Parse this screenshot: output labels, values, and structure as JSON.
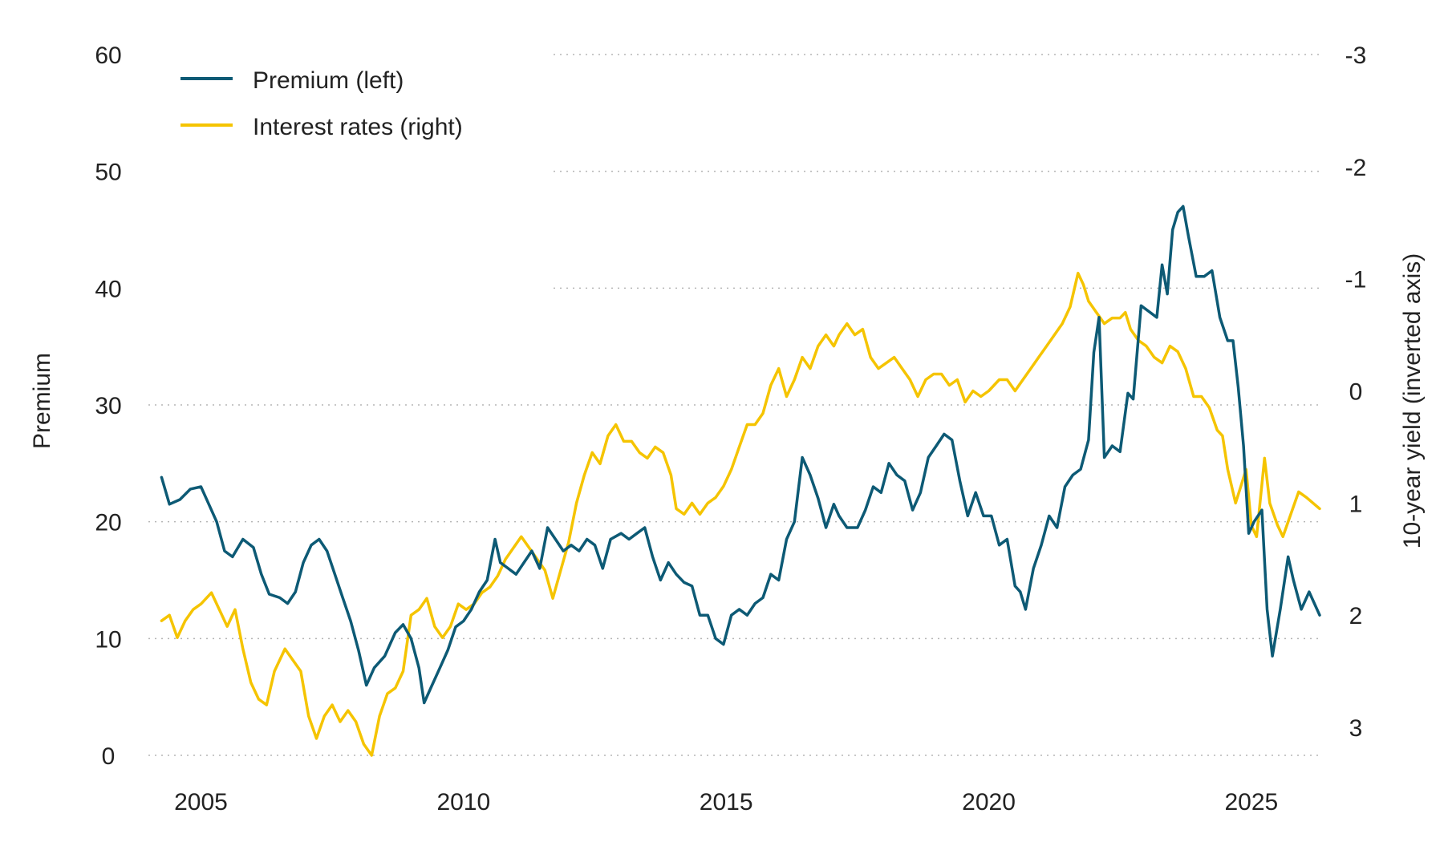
{
  "chart_data": {
    "type": "line",
    "title": "",
    "ylabel": "Premium",
    "y2label": "10-year yield (inverted axis)",
    "ylim": [
      0,
      60
    ],
    "y2lim": [
      3.25,
      -3.0
    ],
    "y2_inverted": true,
    "xlim": [
      2004.0,
      2026.3
    ],
    "x_ticks": [
      2005,
      2010,
      2015,
      2020,
      2025
    ],
    "y_ticks": [
      0,
      10,
      20,
      30,
      40,
      50,
      60
    ],
    "y2_ticks": [
      -3,
      -2,
      -1,
      0,
      1,
      2,
      3
    ],
    "grid": "horizontal-dotted",
    "legend_position": "top-left",
    "colors": {
      "premium": "#0d5a75",
      "rates": "#f5c400"
    },
    "series": [
      {
        "name": "Premium (left)",
        "axis": "left",
        "points": [
          [
            2004.25,
            23.8
          ],
          [
            2004.4,
            21.5
          ],
          [
            2004.6,
            21.9
          ],
          [
            2004.8,
            22.8
          ],
          [
            2005.0,
            23.0
          ],
          [
            2005.15,
            21.5
          ],
          [
            2005.3,
            20.0
          ],
          [
            2005.45,
            17.5
          ],
          [
            2005.6,
            17.0
          ],
          [
            2005.8,
            18.5
          ],
          [
            2006.0,
            17.8
          ],
          [
            2006.15,
            15.5
          ],
          [
            2006.3,
            13.8
          ],
          [
            2006.5,
            13.5
          ],
          [
            2006.65,
            13.0
          ],
          [
            2006.8,
            14.0
          ],
          [
            2006.95,
            16.5
          ],
          [
            2007.1,
            18.0
          ],
          [
            2007.25,
            18.5
          ],
          [
            2007.4,
            17.5
          ],
          [
            2007.55,
            15.5
          ],
          [
            2007.7,
            13.5
          ],
          [
            2007.85,
            11.5
          ],
          [
            2008.0,
            9.0
          ],
          [
            2008.15,
            6.0
          ],
          [
            2008.3,
            7.5
          ],
          [
            2008.5,
            8.5
          ],
          [
            2008.7,
            10.5
          ],
          [
            2008.85,
            11.2
          ],
          [
            2009.0,
            10.0
          ],
          [
            2009.15,
            7.5
          ],
          [
            2009.25,
            4.5
          ],
          [
            2009.4,
            6.0
          ],
          [
            2009.55,
            7.5
          ],
          [
            2009.7,
            9.0
          ],
          [
            2009.85,
            11.0
          ],
          [
            2010.0,
            11.5
          ],
          [
            2010.15,
            12.5
          ],
          [
            2010.3,
            14.0
          ],
          [
            2010.45,
            15.0
          ],
          [
            2010.6,
            18.5
          ],
          [
            2010.7,
            16.5
          ],
          [
            2010.85,
            16.0
          ],
          [
            2011.0,
            15.5
          ],
          [
            2011.15,
            16.5
          ],
          [
            2011.3,
            17.5
          ],
          [
            2011.45,
            16.0
          ],
          [
            2011.6,
            19.5
          ],
          [
            2011.75,
            18.5
          ],
          [
            2011.9,
            17.5
          ],
          [
            2012.05,
            18.0
          ],
          [
            2012.2,
            17.5
          ],
          [
            2012.35,
            18.5
          ],
          [
            2012.5,
            18.0
          ],
          [
            2012.65,
            16.0
          ],
          [
            2012.8,
            18.5
          ],
          [
            2013.0,
            19.0
          ],
          [
            2013.15,
            18.5
          ],
          [
            2013.3,
            19.0
          ],
          [
            2013.45,
            19.5
          ],
          [
            2013.6,
            17.0
          ],
          [
            2013.75,
            15.0
          ],
          [
            2013.9,
            16.5
          ],
          [
            2014.05,
            15.5
          ],
          [
            2014.2,
            14.8
          ],
          [
            2014.35,
            14.5
          ],
          [
            2014.5,
            12.0
          ],
          [
            2014.65,
            12.0
          ],
          [
            2014.8,
            10.0
          ],
          [
            2014.95,
            9.5
          ],
          [
            2015.1,
            12.0
          ],
          [
            2015.25,
            12.5
          ],
          [
            2015.4,
            12.0
          ],
          [
            2015.55,
            13.0
          ],
          [
            2015.7,
            13.5
          ],
          [
            2015.85,
            15.5
          ],
          [
            2016.0,
            15.0
          ],
          [
            2016.15,
            18.5
          ],
          [
            2016.3,
            20.0
          ],
          [
            2016.45,
            25.5
          ],
          [
            2016.6,
            24.0
          ],
          [
            2016.75,
            22.0
          ],
          [
            2016.9,
            19.5
          ],
          [
            2017.05,
            21.5
          ],
          [
            2017.15,
            20.5
          ],
          [
            2017.3,
            19.5
          ],
          [
            2017.5,
            19.5
          ],
          [
            2017.65,
            21.0
          ],
          [
            2017.8,
            23.0
          ],
          [
            2017.95,
            22.5
          ],
          [
            2018.1,
            25.0
          ],
          [
            2018.25,
            24.0
          ],
          [
            2018.4,
            23.5
          ],
          [
            2018.55,
            21.0
          ],
          [
            2018.7,
            22.5
          ],
          [
            2018.85,
            25.5
          ],
          [
            2019.0,
            26.5
          ],
          [
            2019.15,
            27.5
          ],
          [
            2019.3,
            27.0
          ],
          [
            2019.45,
            23.5
          ],
          [
            2019.6,
            20.5
          ],
          [
            2019.75,
            22.5
          ],
          [
            2019.9,
            20.5
          ],
          [
            2020.05,
            20.5
          ],
          [
            2020.2,
            18.0
          ],
          [
            2020.35,
            18.5
          ],
          [
            2020.5,
            14.5
          ],
          [
            2020.6,
            14.0
          ],
          [
            2020.7,
            12.5
          ],
          [
            2020.85,
            16.0
          ],
          [
            2021.0,
            18.0
          ],
          [
            2021.15,
            20.5
          ],
          [
            2021.3,
            19.5
          ],
          [
            2021.45,
            23.0
          ],
          [
            2021.6,
            24.0
          ],
          [
            2021.75,
            24.5
          ],
          [
            2021.9,
            27.0
          ],
          [
            2022.0,
            34.5
          ],
          [
            2022.1,
            37.5
          ],
          [
            2022.2,
            25.5
          ],
          [
            2022.35,
            26.5
          ],
          [
            2022.5,
            26.0
          ],
          [
            2022.65,
            31.0
          ],
          [
            2022.75,
            30.5
          ],
          [
            2022.9,
            38.5
          ],
          [
            2023.05,
            38.0
          ],
          [
            2023.2,
            37.5
          ],
          [
            2023.3,
            42.0
          ],
          [
            2023.4,
            39.5
          ],
          [
            2023.5,
            45.0
          ],
          [
            2023.6,
            46.5
          ],
          [
            2023.7,
            47.0
          ],
          [
            2023.8,
            44.5
          ],
          [
            2023.95,
            41.0
          ],
          [
            2024.1,
            41.0
          ],
          [
            2024.25,
            41.5
          ],
          [
            2024.4,
            37.5
          ],
          [
            2024.55,
            35.5
          ],
          [
            2024.65,
            35.5
          ],
          [
            2024.75,
            31.5
          ],
          [
            2024.85,
            26.5
          ],
          [
            2024.95,
            19.0
          ],
          [
            2025.05,
            20.0
          ],
          [
            2025.2,
            21.0
          ],
          [
            2025.3,
            12.5
          ],
          [
            2025.4,
            8.5
          ],
          [
            2025.55,
            12.5
          ],
          [
            2025.7,
            17.0
          ],
          [
            2025.8,
            15.0
          ],
          [
            2025.95,
            12.5
          ],
          [
            2026.1,
            14.0
          ],
          [
            2026.3,
            12.0
          ]
        ]
      },
      {
        "name": "Interest rates (right)",
        "axis": "right",
        "points": [
          [
            2004.25,
            2.05
          ],
          [
            2004.4,
            2.0
          ],
          [
            2004.55,
            2.2
          ],
          [
            2004.7,
            2.05
          ],
          [
            2004.85,
            1.95
          ],
          [
            2005.0,
            1.9
          ],
          [
            2005.2,
            1.8
          ],
          [
            2005.35,
            1.95
          ],
          [
            2005.5,
            2.1
          ],
          [
            2005.65,
            1.95
          ],
          [
            2005.8,
            2.3
          ],
          [
            2005.95,
            2.6
          ],
          [
            2006.1,
            2.75
          ],
          [
            2006.25,
            2.8
          ],
          [
            2006.4,
            2.5
          ],
          [
            2006.6,
            2.3
          ],
          [
            2006.75,
            2.4
          ],
          [
            2006.9,
            2.5
          ],
          [
            2007.05,
            2.9
          ],
          [
            2007.2,
            3.1
          ],
          [
            2007.35,
            2.9
          ],
          [
            2007.5,
            2.8
          ],
          [
            2007.65,
            2.95
          ],
          [
            2007.8,
            2.85
          ],
          [
            2007.95,
            2.95
          ],
          [
            2008.1,
            3.15
          ],
          [
            2008.25,
            3.25
          ],
          [
            2008.4,
            2.9
          ],
          [
            2008.55,
            2.7
          ],
          [
            2008.7,
            2.65
          ],
          [
            2008.85,
            2.5
          ],
          [
            2009.0,
            2.0
          ],
          [
            2009.15,
            1.95
          ],
          [
            2009.3,
            1.85
          ],
          [
            2009.45,
            2.1
          ],
          [
            2009.6,
            2.2
          ],
          [
            2009.75,
            2.1
          ],
          [
            2009.9,
            1.9
          ],
          [
            2010.05,
            1.95
          ],
          [
            2010.2,
            1.9
          ],
          [
            2010.35,
            1.8
          ],
          [
            2010.5,
            1.75
          ],
          [
            2010.65,
            1.65
          ],
          [
            2010.8,
            1.5
          ],
          [
            2010.95,
            1.4
          ],
          [
            2011.1,
            1.3
          ],
          [
            2011.25,
            1.4
          ],
          [
            2011.4,
            1.5
          ],
          [
            2011.55,
            1.6
          ],
          [
            2011.7,
            1.85
          ],
          [
            2011.85,
            1.6
          ],
          [
            2012.0,
            1.35
          ],
          [
            2012.15,
            1.0
          ],
          [
            2012.3,
            0.75
          ],
          [
            2012.45,
            0.55
          ],
          [
            2012.6,
            0.65
          ],
          [
            2012.75,
            0.4
          ],
          [
            2012.9,
            0.3
          ],
          [
            2013.05,
            0.45
          ],
          [
            2013.2,
            0.45
          ],
          [
            2013.35,
            0.55
          ],
          [
            2013.5,
            0.6
          ],
          [
            2013.65,
            0.5
          ],
          [
            2013.8,
            0.55
          ],
          [
            2013.95,
            0.75
          ],
          [
            2014.05,
            1.05
          ],
          [
            2014.2,
            1.1
          ],
          [
            2014.35,
            1.0
          ],
          [
            2014.5,
            1.1
          ],
          [
            2014.65,
            1.0
          ],
          [
            2014.8,
            0.95
          ],
          [
            2014.95,
            0.85
          ],
          [
            2015.1,
            0.7
          ],
          [
            2015.25,
            0.5
          ],
          [
            2015.4,
            0.3
          ],
          [
            2015.55,
            0.3
          ],
          [
            2015.7,
            0.2
          ],
          [
            2015.85,
            -0.05
          ],
          [
            2016.0,
            -0.2
          ],
          [
            2016.15,
            0.05
          ],
          [
            2016.3,
            -0.1
          ],
          [
            2016.45,
            -0.3
          ],
          [
            2016.6,
            -0.2
          ],
          [
            2016.75,
            -0.4
          ],
          [
            2016.9,
            -0.5
          ],
          [
            2017.05,
            -0.4
          ],
          [
            2017.15,
            -0.5
          ],
          [
            2017.3,
            -0.6
          ],
          [
            2017.45,
            -0.5
          ],
          [
            2017.6,
            -0.55
          ],
          [
            2017.75,
            -0.3
          ],
          [
            2017.9,
            -0.2
          ],
          [
            2018.05,
            -0.25
          ],
          [
            2018.2,
            -0.3
          ],
          [
            2018.35,
            -0.2
          ],
          [
            2018.5,
            -0.1
          ],
          [
            2018.65,
            0.05
          ],
          [
            2018.8,
            -0.1
          ],
          [
            2018.95,
            -0.15
          ],
          [
            2019.1,
            -0.15
          ],
          [
            2019.25,
            -0.05
          ],
          [
            2019.4,
            -0.1
          ],
          [
            2019.55,
            0.1
          ],
          [
            2019.7,
            0.0
          ],
          [
            2019.85,
            0.05
          ],
          [
            2020.0,
            0.0
          ],
          [
            2020.2,
            -0.1
          ],
          [
            2020.35,
            -0.1
          ],
          [
            2020.5,
            0.0
          ],
          [
            2020.65,
            -0.1
          ],
          [
            2020.8,
            -0.2
          ],
          [
            2020.95,
            -0.3
          ],
          [
            2021.1,
            -0.4
          ],
          [
            2021.25,
            -0.5
          ],
          [
            2021.4,
            -0.6
          ],
          [
            2021.55,
            -0.75
          ],
          [
            2021.7,
            -1.05
          ],
          [
            2021.8,
            -0.95
          ],
          [
            2021.9,
            -0.8
          ],
          [
            2022.05,
            -0.7
          ],
          [
            2022.2,
            -0.6
          ],
          [
            2022.35,
            -0.65
          ],
          [
            2022.5,
            -0.65
          ],
          [
            2022.6,
            -0.7
          ],
          [
            2022.7,
            -0.55
          ],
          [
            2022.85,
            -0.45
          ],
          [
            2023.0,
            -0.4
          ],
          [
            2023.15,
            -0.3
          ],
          [
            2023.3,
            -0.25
          ],
          [
            2023.45,
            -0.4
          ],
          [
            2023.6,
            -0.35
          ],
          [
            2023.75,
            -0.2
          ],
          [
            2023.9,
            0.05
          ],
          [
            2024.05,
            0.05
          ],
          [
            2024.2,
            0.15
          ],
          [
            2024.35,
            0.35
          ],
          [
            2024.45,
            0.4
          ],
          [
            2024.55,
            0.7
          ],
          [
            2024.7,
            1.0
          ],
          [
            2024.8,
            0.85
          ],
          [
            2024.9,
            0.7
          ],
          [
            2025.0,
            1.2
          ],
          [
            2025.1,
            1.3
          ],
          [
            2025.25,
            0.6
          ],
          [
            2025.35,
            1.0
          ],
          [
            2025.5,
            1.2
          ],
          [
            2025.6,
            1.3
          ],
          [
            2025.75,
            1.1
          ],
          [
            2025.9,
            0.9
          ],
          [
            2026.05,
            0.95
          ],
          [
            2026.3,
            1.05
          ]
        ]
      }
    ]
  }
}
